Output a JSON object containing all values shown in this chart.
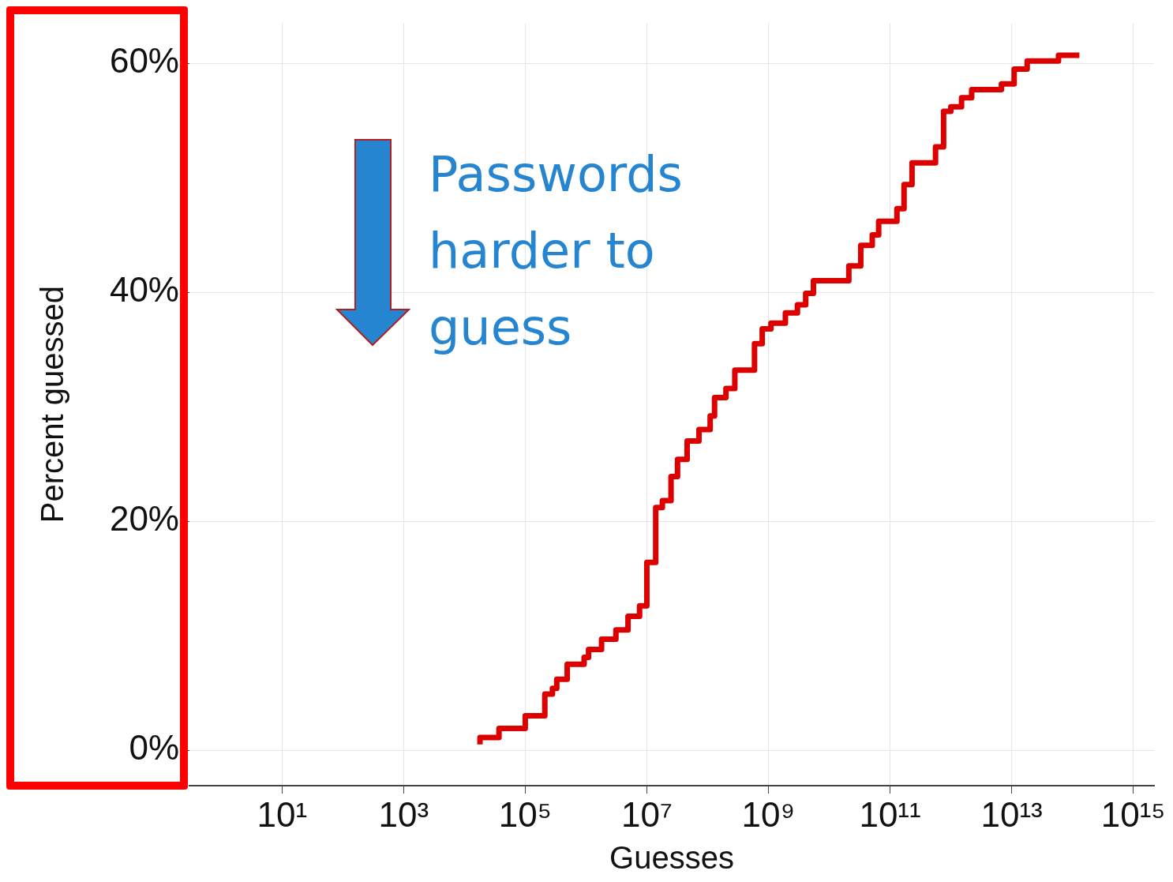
{
  "chart_data": {
    "type": "step",
    "xlabel": "Guesses",
    "ylabel": "Percent guessed",
    "log": "x",
    "grid": true,
    "xlim": [
      0.3,
      2200000000000000.0
    ],
    "ylim": [
      -3.1,
      63.5
    ],
    "xticks": [
      {
        "value": 10,
        "label": "10¹"
      },
      {
        "value": 1000.0,
        "label": "10³"
      },
      {
        "value": 100000.0,
        "label": "10⁵"
      },
      {
        "value": 10000000.0,
        "label": "10⁷"
      },
      {
        "value": 1000000000.0,
        "label": "10⁹"
      },
      {
        "value": 100000000000.0,
        "label": "10¹¹"
      },
      {
        "value": 10000000000000.0,
        "label": "10¹³"
      },
      {
        "value": 1000000000000000.0,
        "label": "10¹⁵"
      }
    ],
    "yticks": [
      {
        "value": 0,
        "label": "0%"
      },
      {
        "value": 20,
        "label": "20%"
      },
      {
        "value": 40,
        "label": "40%"
      },
      {
        "value": 60,
        "label": "60%"
      }
    ],
    "annotations": [
      "Passwords harder to guess"
    ],
    "series": [
      {
        "color": "#dd0000",
        "x": [
          18000.0,
          37000.0,
          100000.0,
          210000.0,
          280000.0,
          330000.0,
          490000.0,
          930000.0,
          1100000.0,
          1800000.0,
          3100000.0,
          4900000.0,
          7600000.0,
          10000000.0,
          14000000.0,
          18000000.0,
          25000000.0,
          32000000.0,
          46000000.0,
          72000000.0,
          110000000.0,
          130000000.0,
          200000000.0,
          280000000.0,
          590000000.0,
          790000000.0,
          1100000000.0,
          1900000000.0,
          3000000000.0,
          4100000000.0,
          5500000000.0,
          21000000000.0,
          33000000000.0,
          51000000000.0,
          65000000000.0,
          130000000000.0,
          170000000000.0,
          230000000000.0,
          560000000000.0,
          760000000000.0,
          1000000000000.0,
          1500000000000.0,
          2200000000000.0,
          6800000000000.0,
          11000000000000.0,
          18000000000000.0,
          59000000000000.0,
          130000000000000.0
        ],
        "values": [
          0.5,
          1.1,
          1.9,
          3.0,
          4.9,
          5.4,
          6.2,
          7.5,
          8.1,
          8.8,
          9.7,
          10.5,
          11.7,
          12.6,
          16.4,
          21.2,
          21.8,
          23.9,
          25.4,
          27.0,
          28.0,
          29.2,
          30.8,
          31.6,
          33.2,
          35.5,
          36.8,
          37.3,
          38.2,
          38.9,
          39.9,
          41.0,
          42.3,
          44.1,
          45.0,
          46.2,
          47.3,
          49.4,
          51.3,
          52.7,
          55.8,
          56.2,
          57.0,
          57.7,
          58.2,
          59.5,
          60.2,
          60.7
        ]
      }
    ]
  }
}
